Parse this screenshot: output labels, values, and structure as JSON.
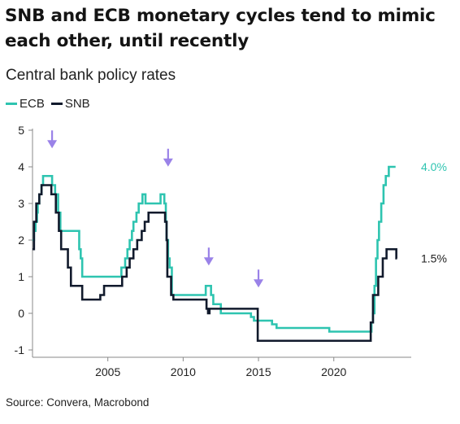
{
  "title": "SNB and ECB monetary cycles tend to mimic each other, until recently",
  "subtitle": "Central bank policy rates",
  "source": "Source: Convera, Macrobond",
  "chart_data": {
    "type": "line",
    "xlim": [
      2000.0,
      2024.6
    ],
    "ylim": [
      -1.2,
      5
    ],
    "yticks": [
      -1,
      0,
      1,
      2,
      3,
      4,
      5
    ],
    "xticks": [
      2005,
      2010,
      2015,
      2020
    ],
    "grid": false,
    "legend_placement": "top-left",
    "end_labels": [
      {
        "series": "ECB",
        "text": "4.0%"
      },
      {
        "series": "SNB",
        "text": "1.5%"
      }
    ],
    "arrows": [
      {
        "x": 2001.3,
        "y": 4.55
      },
      {
        "x": 2009.0,
        "y": 4.05
      },
      {
        "x": 2011.7,
        "y": 1.35
      },
      {
        "x": 2015.0,
        "y": 0.75
      }
    ],
    "arrow_color": "#9a82e8",
    "series": [
      {
        "name": "ECB",
        "color": "#2ec4b0",
        "step": true,
        "points": [
          [
            2000.0,
            2.0
          ],
          [
            2000.1,
            2.25
          ],
          [
            2000.2,
            2.5
          ],
          [
            2000.3,
            2.75
          ],
          [
            2000.35,
            3.0
          ],
          [
            2000.45,
            3.25
          ],
          [
            2000.6,
            3.5
          ],
          [
            2000.7,
            3.75
          ],
          [
            2001.3,
            3.5
          ],
          [
            2001.5,
            3.25
          ],
          [
            2001.7,
            2.75
          ],
          [
            2001.85,
            2.25
          ],
          [
            2003.1,
            1.75
          ],
          [
            2003.2,
            1.5
          ],
          [
            2003.3,
            1.0
          ],
          [
            2005.9,
            1.25
          ],
          [
            2006.15,
            1.5
          ],
          [
            2006.3,
            1.75
          ],
          [
            2006.45,
            2.0
          ],
          [
            2006.6,
            2.25
          ],
          [
            2006.7,
            2.5
          ],
          [
            2006.9,
            2.75
          ],
          [
            2007.05,
            3.0
          ],
          [
            2007.3,
            3.25
          ],
          [
            2007.5,
            3.0
          ],
          [
            2008.5,
            3.25
          ],
          [
            2008.75,
            3.0
          ],
          [
            2008.85,
            2.5
          ],
          [
            2008.9,
            2.0
          ],
          [
            2009.0,
            1.5
          ],
          [
            2009.1,
            1.25
          ],
          [
            2009.25,
            0.5
          ],
          [
            2011.3,
            0.5
          ],
          [
            2011.5,
            0.75
          ],
          [
            2011.85,
            0.5
          ],
          [
            2012.0,
            0.25
          ],
          [
            2012.5,
            0.0
          ],
          [
            2014.5,
            -0.1
          ],
          [
            2014.7,
            -0.2
          ],
          [
            2015.9,
            -0.3
          ],
          [
            2016.2,
            -0.4
          ],
          [
            2019.7,
            -0.5
          ],
          [
            2022.5,
            -0.25
          ],
          [
            2022.6,
            0.0
          ],
          [
            2022.7,
            0.75
          ],
          [
            2022.8,
            1.5
          ],
          [
            2022.9,
            2.0
          ],
          [
            2023.0,
            2.5
          ],
          [
            2023.15,
            3.0
          ],
          [
            2023.3,
            3.5
          ],
          [
            2023.45,
            3.75
          ],
          [
            2023.65,
            4.0
          ],
          [
            2024.1,
            4.0
          ]
        ]
      },
      {
        "name": "SNB",
        "color": "#111a2c",
        "step": true,
        "points": [
          [
            2000.0,
            1.75
          ],
          [
            2000.1,
            2.5
          ],
          [
            2000.25,
            3.0
          ],
          [
            2000.45,
            3.25
          ],
          [
            2000.6,
            3.5
          ],
          [
            2001.25,
            3.25
          ],
          [
            2001.55,
            2.75
          ],
          [
            2001.75,
            2.25
          ],
          [
            2001.9,
            1.75
          ],
          [
            2002.35,
            1.25
          ],
          [
            2002.55,
            0.75
          ],
          [
            2003.2,
            0.75
          ],
          [
            2003.3,
            0.375
          ],
          [
            2004.5,
            0.5
          ],
          [
            2004.75,
            0.75
          ],
          [
            2005.95,
            1.0
          ],
          [
            2006.25,
            1.25
          ],
          [
            2006.45,
            1.5
          ],
          [
            2006.7,
            1.75
          ],
          [
            2006.95,
            2.0
          ],
          [
            2007.25,
            2.25
          ],
          [
            2007.45,
            2.5
          ],
          [
            2007.7,
            2.75
          ],
          [
            2008.8,
            2.5
          ],
          [
            2008.9,
            2.0
          ],
          [
            2008.95,
            1.0
          ],
          [
            2009.2,
            0.5
          ],
          [
            2009.35,
            0.375
          ],
          [
            2011.55,
            0.125
          ],
          [
            2011.65,
            0.0
          ],
          [
            2011.75,
            0.125
          ],
          [
            2014.95,
            -0.75
          ],
          [
            2022.45,
            -0.25
          ],
          [
            2022.6,
            0.5
          ],
          [
            2022.95,
            1.0
          ],
          [
            2023.25,
            1.5
          ],
          [
            2023.5,
            1.75
          ],
          [
            2024.15,
            1.5
          ],
          [
            2024.2,
            1.5
          ]
        ]
      }
    ]
  }
}
